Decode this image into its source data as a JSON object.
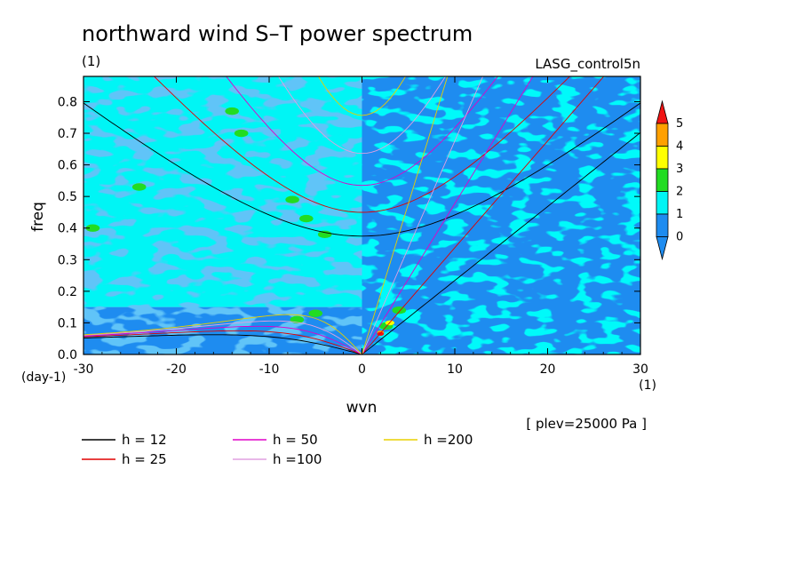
{
  "chart_data": {
    "type": "heatmap",
    "title": "northward wind S–T power spectrum",
    "left_subtitle": "(1)",
    "right_subtitle": "LASG_control5n",
    "xlabel": "wvn",
    "ylabel": "freq",
    "x_unit": "(1)",
    "y_unit": "(day-1)",
    "xlim": [
      -30,
      30
    ],
    "ylim": [
      0,
      0.88
    ],
    "x_ticks": [
      -30,
      -20,
      -10,
      0,
      10,
      20,
      30
    ],
    "x_tick_labels": [
      "-30",
      "-20",
      "-10",
      "0",
      "10",
      "20",
      "30"
    ],
    "y_ticks": [
      0,
      0.1,
      0.2,
      0.3,
      0.4,
      0.5,
      0.6,
      0.7,
      0.8
    ],
    "y_tick_labels": [
      "0.0",
      "0.1",
      "0.2",
      "0.3",
      "0.4",
      "0.5",
      "0.6",
      "0.7",
      "0.8"
    ],
    "annotation": "[ plev=25000 Pa ]",
    "colorbar": {
      "levels": [
        0,
        1,
        2,
        3,
        4,
        5
      ],
      "labels": [
        "0",
        "1",
        "2",
        "3",
        "4",
        "5"
      ],
      "colors": [
        "#1e8cf0",
        "#00f5f5",
        "#22dc22",
        "#ffff00",
        "#ffa000",
        "#f01414"
      ]
    },
    "field_regions": [
      {
        "xlim": [
          -30,
          0
        ],
        "ylim": [
          0.15,
          0.88
        ],
        "level": 1
      },
      {
        "xlim": [
          0,
          30
        ],
        "ylim": [
          0,
          0.88
        ],
        "level": 0
      },
      {
        "xlim": [
          -30,
          0
        ],
        "ylim": [
          0,
          0.15
        ],
        "level": 0
      }
    ],
    "hotspots": [
      {
        "x": -7.5,
        "y": 0.49,
        "level": 2
      },
      {
        "x": -6,
        "y": 0.43,
        "level": 2
      },
      {
        "x": -4,
        "y": 0.38,
        "level": 2
      },
      {
        "x": -13,
        "y": 0.7,
        "level": 2
      },
      {
        "x": -14,
        "y": 0.77,
        "level": 2
      },
      {
        "x": -24,
        "y": 0.53,
        "level": 2
      },
      {
        "x": -29,
        "y": 0.4,
        "level": 2
      },
      {
        "x": -5,
        "y": 0.13,
        "level": 2
      },
      {
        "x": -7,
        "y": 0.11,
        "level": 2
      },
      {
        "x": 4,
        "y": 0.14,
        "level": 2
      },
      {
        "x": 2.6,
        "y": 0.09,
        "level": 2
      },
      {
        "x": 3,
        "y": 0.1,
        "level": 3
      },
      {
        "x": 2,
        "y": 0.07,
        "level": 4
      },
      {
        "x": 2,
        "y": 0.065,
        "level": 5
      }
    ],
    "curve_colors": {
      "12": "#000000",
      "25": "#e00000",
      "50": "#e000c8",
      "100": "#e0a0e0",
      "200": "#e8d000"
    },
    "legend": [
      {
        "label": "h = 12",
        "h": 12
      },
      {
        "label": "h = 25",
        "h": 25
      },
      {
        "label": "h = 50",
        "h": 50
      },
      {
        "label": "h =100",
        "h": 100
      },
      {
        "label": "h =200",
        "h": 200
      }
    ]
  }
}
